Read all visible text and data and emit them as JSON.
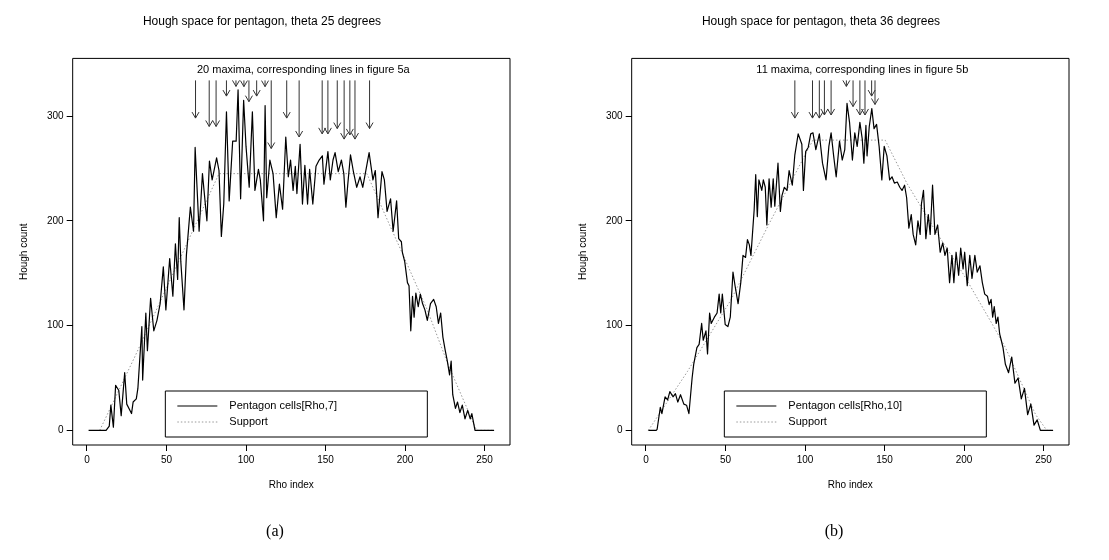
{
  "chart_data": [
    {
      "type": "line",
      "title": "Hough space for pentagon, theta 25 degrees",
      "xlabel": "Rho index",
      "ylabel": "Hough count",
      "xlim": [
        -9,
        266
      ],
      "ylim": [
        -14,
        355
      ],
      "xticks": [
        0,
        50,
        100,
        150,
        200,
        250
      ],
      "yticks": [
        0,
        100,
        200,
        300
      ],
      "legend": "bottom",
      "annotations": [
        "20 maxima, corresponding lines in figure 5a",
        "(a)"
      ],
      "series": [
        {
          "name": "Pentagon cells[Rho,7]",
          "color": "#000000",
          "line_style": "solid",
          "x": [
            1,
            12,
            14,
            15,
            16.6,
            18,
            20,
            21.5,
            23.7,
            25,
            28,
            29,
            31,
            32,
            34.5,
            35,
            37,
            38,
            40,
            42,
            44,
            46,
            48,
            49.6,
            52,
            54,
            55.6,
            57,
            58,
            59,
            61,
            62.5,
            65,
            67,
            68,
            70.5,
            72.6,
            75.4,
            77,
            78.7,
            81.5,
            83,
            84.5,
            86,
            87.7,
            89.4,
            91.6,
            93.8,
            95,
            96.6,
            98.5,
            100,
            102,
            104,
            105.6,
            107.8,
            109,
            111,
            112,
            113,
            115,
            117,
            119,
            121,
            123,
            125,
            126.6,
            128,
            129.6,
            131,
            132,
            134,
            135.5,
            137,
            138.7,
            140,
            142,
            144,
            146,
            148,
            149,
            151.5,
            153,
            154.7,
            156,
            158,
            160,
            161.5,
            162.8,
            164,
            165.7,
            167.4,
            169.6,
            171.7,
            173.4,
            175,
            177.4,
            179.8,
            181.3,
            183,
            185.5,
            187,
            188.7,
            190.9,
            192.5,
            194.7,
            196,
            197.7,
            198.3,
            199.8,
            201.5,
            202.5,
            203.6,
            204.7,
            205.7,
            206.8,
            208.3,
            209.6,
            211,
            212.5,
            214,
            216,
            218,
            219.6,
            221,
            222.4,
            223.8,
            225.3,
            226.6,
            228,
            229,
            230,
            231.7,
            233,
            234.5,
            236,
            237.7,
            239.4,
            241,
            242,
            244,
            256
          ],
          "values": [
            0,
            0,
            4,
            24,
            3,
            43,
            38,
            14,
            55,
            25,
            16,
            27,
            30,
            40,
            99,
            48,
            112,
            76,
            126,
            95,
            105,
            121,
            156,
            115,
            164,
            128,
            178,
            144,
            203,
            161,
            115,
            167,
            213,
            190,
            270,
            190,
            245,
            200,
            257,
            239,
            260,
            248,
            185,
            216,
            304,
            219,
            276,
            276,
            325,
            221,
            315,
            271,
            232,
            304,
            229,
            249,
            239,
            200,
            310,
            222,
            258,
            245,
            203,
            235,
            211,
            280,
            242,
            258,
            229,
            252,
            226,
            273,
            216,
            253,
            216,
            249,
            216,
            252,
            258,
            262,
            235,
            266,
            239,
            258,
            265,
            247,
            258,
            245,
            213,
            235,
            263,
            248,
            232,
            242,
            232,
            245,
            265,
            239,
            248,
            203,
            247,
            239,
            209,
            221,
            190,
            219,
            183,
            180,
            170,
            161,
            141,
            138,
            95,
            128,
            108,
            131,
            118,
            130,
            121,
            115,
            105,
            121,
            125,
            118,
            102,
            112,
            89,
            76,
            66,
            53,
            66,
            34,
            21,
            27,
            17,
            24,
            11,
            19,
            11,
            16,
            0,
            0
          ]
        },
        {
          "name": "Support",
          "color": "#999999",
          "line_style": "dotted",
          "x": [
            8,
            30,
            50,
            70,
            83,
            120,
            176,
            190,
            198,
            214,
            227,
            245,
            256
          ],
          "values": [
            0,
            70,
            136,
            202,
            245,
            245,
            245,
            197,
            170,
            115,
            63,
            0,
            0
          ]
        }
      ]
    },
    {
      "type": "line",
      "title": "Hough space for pentagon, theta 36 degrees",
      "xlabel": "Rho index",
      "ylabel": "Hough count",
      "xlim": [
        -9,
        266
      ],
      "ylim": [
        -14,
        355
      ],
      "xticks": [
        0,
        50,
        100,
        150,
        200,
        250
      ],
      "yticks": [
        0,
        100,
        200,
        300
      ],
      "legend": "bottom",
      "annotations": [
        "11 maxima, corresponding lines in figure 5b",
        "(b)"
      ],
      "series": [
        {
          "name": "Pentagon cells[Rho,10]",
          "color": "#000000",
          "line_style": "solid",
          "x": [
            1.5,
            6.4,
            7,
            9,
            10,
            12,
            13.6,
            15,
            17,
            18.5,
            20,
            21.7,
            23.8,
            25.5,
            27,
            29,
            30,
            32,
            33.4,
            35,
            36,
            37.7,
            38.7,
            40,
            41,
            43,
            44.7,
            46,
            47,
            48,
            49.8,
            51.5,
            53,
            54.7,
            56,
            57.9,
            59.6,
            61,
            62.6,
            63.8,
            65,
            66,
            68,
            69,
            70,
            71,
            72.8,
            73.8,
            75,
            76,
            77.4,
            78.7,
            80,
            81,
            83,
            84.5,
            85.5,
            87,
            88.7,
            90,
            92,
            93.6,
            95.7,
            98,
            99,
            100.4,
            102,
            103.6,
            105,
            106.8,
            109,
            111,
            113.2,
            115,
            116.4,
            118,
            119.6,
            121.7,
            123.4,
            125,
            126.4,
            128,
            129.8,
            131.3,
            132.8,
            134.5,
            136,
            137,
            138.3,
            139,
            140.4,
            142,
            143.4,
            145,
            146.6,
            148.3,
            149.8,
            151.5,
            153.2,
            154.7,
            156.2,
            158,
            159.6,
            161,
            162.6,
            163.9,
            165.3,
            166.8,
            168,
            169.6,
            171,
            172.4,
            173.2,
            174.5,
            176,
            177.5,
            178.7,
            180.2,
            181.7,
            183.4,
            185,
            186.6,
            188,
            189.4,
            190.9,
            192.4,
            193.6,
            195,
            196.6,
            197.9,
            199.4,
            200.4,
            202,
            203.6,
            205,
            206.8,
            208.3,
            210,
            211.5,
            213,
            214.7,
            215.8,
            217,
            218,
            219,
            220.2,
            221.3,
            222.4,
            223.4,
            224.5,
            226,
            228,
            230,
            232,
            234,
            236,
            238,
            240,
            242,
            244,
            246,
            248,
            256
          ],
          "values": [
            0,
            0,
            1,
            22,
            16,
            32,
            29,
            37,
            32,
            35,
            27,
            34,
            25,
            24,
            16,
            50,
            63,
            79,
            82,
            102,
            86,
            95,
            73,
            112,
            102,
            108,
            112,
            130,
            112,
            130,
            101,
            99,
            108,
            151,
            138,
            121,
            141,
            167,
            165,
            182,
            177,
            167,
            210,
            244,
            204,
            239,
            229,
            239,
            232,
            196,
            240,
            213,
            240,
            214,
            255,
            209,
            224,
            232,
            229,
            248,
            234,
            263,
            283,
            273,
            229,
            266,
            270,
            283,
            284,
            268,
            283,
            255,
            239,
            271,
            284,
            262,
            242,
            276,
            258,
            268,
            312,
            294,
            258,
            284,
            271,
            294,
            278,
            255,
            291,
            262,
            290,
            307,
            288,
            292,
            271,
            239,
            271,
            262,
            239,
            242,
            236,
            237,
            232,
            229,
            234,
            222,
            193,
            206,
            187,
            177,
            200,
            187,
            216,
            229,
            183,
            206,
            187,
            234,
            187,
            196,
            170,
            179,
            167,
            174,
            141,
            167,
            141,
            170,
            148,
            174,
            154,
            170,
            138,
            167,
            145,
            167,
            151,
            157,
            141,
            130,
            128,
            120,
            125,
            108,
            118,
            102,
            108,
            92,
            86,
            79,
            63,
            55,
            70,
            45,
            50,
            30,
            40,
            15,
            25,
            5,
            10,
            0,
            0
          ]
        },
        {
          "name": "Support",
          "color": "#999999",
          "line_style": "dotted",
          "x": [
            1.5,
            26,
            53.6,
            77,
            102.5,
            105,
            150.4,
            164,
            181,
            200,
            217.5,
            226,
            245,
            252,
            256
          ],
          "values": [
            0,
            56,
            125,
            196,
            270,
            277,
            277,
            236,
            193,
            148,
            102,
            79,
            15,
            0,
            0
          ]
        }
      ]
    }
  ]
}
